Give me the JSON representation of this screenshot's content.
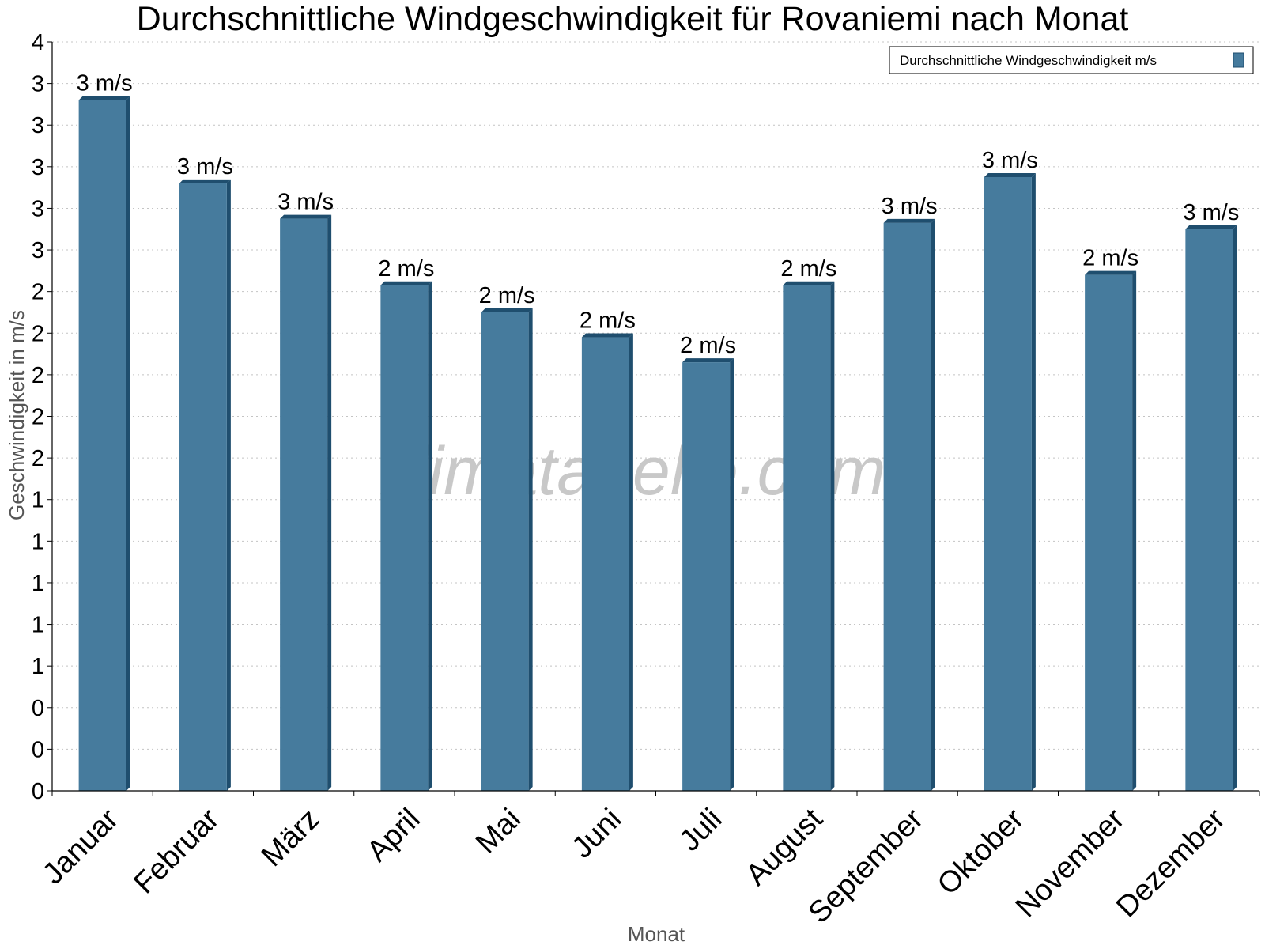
{
  "chart_data": {
    "type": "bar",
    "title": "Durchschnittliche Windgeschwindigkeit für Rovaniemi nach Monat",
    "xlabel": "Monat",
    "ylabel": "Geschwindigkeit in m/s",
    "categories": [
      "Januar",
      "Februar",
      "März",
      "April",
      "Mai",
      "Juni",
      "Juli",
      "August",
      "September",
      "Oktober",
      "November",
      "Dezember"
    ],
    "series": [
      {
        "name": "Durchschnittliche Windgeschwindigkeit m/s",
        "values": [
          3.32,
          2.92,
          2.75,
          2.43,
          2.3,
          2.18,
          2.06,
          2.43,
          2.73,
          2.95,
          2.48,
          2.7
        ],
        "labels": [
          "3 m/s",
          "3 m/s",
          "3 m/s",
          "2 m/s",
          "2 m/s",
          "2 m/s",
          "2 m/s",
          "2 m/s",
          "3 m/s",
          "3 m/s",
          "2 m/s",
          "3 m/s"
        ],
        "color": "#467b9d",
        "side_color": "#1f4e6e"
      }
    ],
    "ylim": [
      0,
      3.6
    ],
    "yticks": [
      0,
      0.2,
      0.4,
      0.6,
      0.8,
      1.0,
      1.2,
      1.4,
      1.6,
      1.8,
      2.0,
      2.2,
      2.4,
      2.6,
      2.8,
      3.0,
      3.2,
      3.4,
      3.6
    ],
    "ytick_labels": [
      "0",
      "0",
      "0",
      "1",
      "1",
      "1",
      "1",
      "1",
      "2",
      "2",
      "2",
      "2",
      "2",
      "3",
      "3",
      "3",
      "3",
      "3",
      "4"
    ],
    "grid": true,
    "legend_position": "top-right",
    "watermark": "klimatabelle.com"
  }
}
